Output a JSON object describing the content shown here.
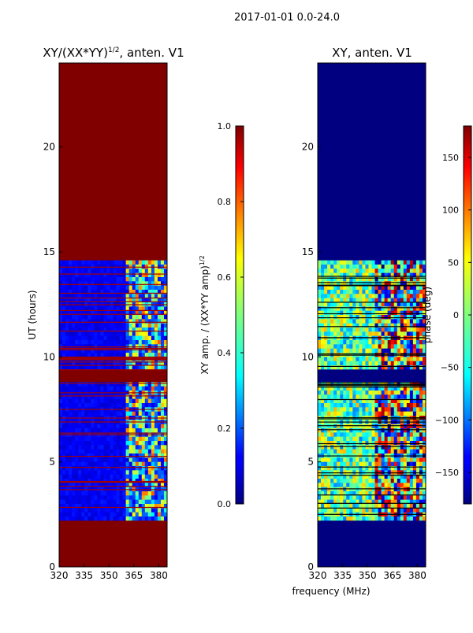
{
  "suptitle": "2017-01-01 0.0-24.0",
  "chart_data": [
    {
      "type": "heatmap",
      "title": "XY/(XX*YY)",
      "title_sup": "1/2",
      "title_suffix": ", anten. V1",
      "xlabel": "",
      "ylabel": "UT (hours)",
      "xlim": [
        320,
        385
      ],
      "ylim": [
        0,
        24
      ],
      "xticks": [
        320,
        335,
        350,
        365,
        380
      ],
      "yticks": [
        0,
        5,
        10,
        15,
        20
      ],
      "flagged_hours": [
        [
          0,
          2.2
        ],
        [
          14.6,
          24
        ],
        [
          8.8,
          9.4
        ]
      ],
      "colorbar": {
        "label": "XY amp. / (XX*YY amp)",
        "label_sup": "1/2",
        "range": [
          0.0,
          1.0
        ],
        "ticks": [
          "0.0",
          "0.2",
          "0.4",
          "0.6",
          "0.8",
          "1.0"
        ],
        "colormap": "jet"
      }
    },
    {
      "type": "heatmap",
      "title": "XY, anten. V1",
      "xlabel": "frequency (MHz)",
      "ylabel": "",
      "xlim": [
        320,
        385
      ],
      "ylim": [
        0,
        24
      ],
      "xticks": [
        320,
        335,
        350,
        365,
        380
      ],
      "yticks": [
        0,
        5,
        10,
        15,
        20
      ],
      "flagged_hours": [
        [
          0,
          2.2
        ],
        [
          14.6,
          24
        ],
        [
          8.8,
          9.4
        ]
      ],
      "colorbar": {
        "label": "phase (deg)",
        "range": [
          -180,
          180
        ],
        "ticks": [
          "−150",
          "−100",
          "−50",
          "0",
          "50",
          "100",
          "150"
        ],
        "colormap": "jet"
      }
    }
  ]
}
